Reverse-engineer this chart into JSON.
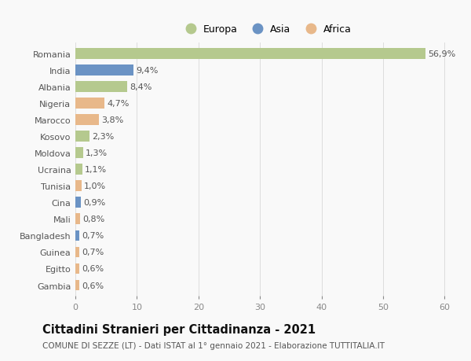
{
  "categories": [
    "Romania",
    "India",
    "Albania",
    "Nigeria",
    "Marocco",
    "Kosovo",
    "Moldova",
    "Ucraina",
    "Tunisia",
    "Cina",
    "Mali",
    "Bangladesh",
    "Guinea",
    "Egitto",
    "Gambia"
  ],
  "values": [
    56.9,
    9.4,
    8.4,
    4.7,
    3.8,
    2.3,
    1.3,
    1.1,
    1.0,
    0.9,
    0.8,
    0.7,
    0.7,
    0.6,
    0.6
  ],
  "labels": [
    "56,9%",
    "9,4%",
    "8,4%",
    "4,7%",
    "3,8%",
    "2,3%",
    "1,3%",
    "1,1%",
    "1,0%",
    "0,9%",
    "0,8%",
    "0,7%",
    "0,7%",
    "0,6%",
    "0,6%"
  ],
  "continents": [
    "Europa",
    "Asia",
    "Europa",
    "Africa",
    "Africa",
    "Europa",
    "Europa",
    "Europa",
    "Africa",
    "Asia",
    "Africa",
    "Asia",
    "Africa",
    "Africa",
    "Africa"
  ],
  "colors": {
    "Europa": "#b5c98e",
    "Asia": "#6b93c4",
    "Africa": "#e8b88a"
  },
  "title": "Cittadini Stranieri per Cittadinanza - 2021",
  "subtitle": "COMUNE DI SEZZE (LT) - Dati ISTAT al 1° gennaio 2021 - Elaborazione TUTTITALIA.IT",
  "xlim": [
    0,
    62
  ],
  "xticks": [
    0,
    10,
    20,
    30,
    40,
    50,
    60
  ],
  "background_color": "#f9f9f9",
  "grid_color": "#dddddd",
  "bar_height": 0.65,
  "label_fontsize": 8,
  "title_fontsize": 10.5,
  "subtitle_fontsize": 7.5,
  "tick_fontsize": 8
}
